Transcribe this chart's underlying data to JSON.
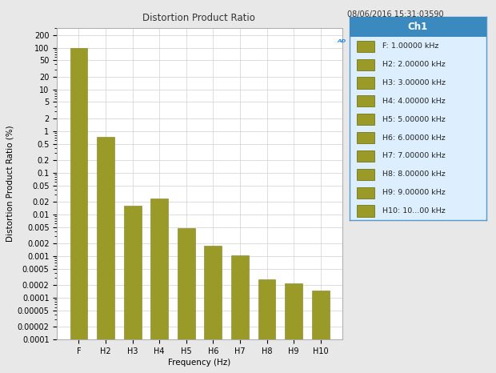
{
  "title": "Distortion Product Ratio",
  "timestamp": "08/06/2016 15:31:03590",
  "xlabel": "Frequency (Hz)",
  "ylabel": "Distortion Product Ratio (%)",
  "categories": [
    "F",
    "H2",
    "H3",
    "H4",
    "H5",
    "H6",
    "H7",
    "H8",
    "H9",
    "H10"
  ],
  "values": [
    100.0,
    0.72,
    0.016,
    0.024,
    0.0047,
    0.0018,
    0.00105,
    0.00028,
    0.00022,
    0.00015
  ],
  "bar_color": "#9a9a28",
  "bar_edge_color": "#808020",
  "background_color": "#e8e8e8",
  "plot_bg_color": "#ffffff",
  "grid_color": "#d0d0d0",
  "ylim_min": 0.0001,
  "ylim_max": 200,
  "yticks": [
    200,
    100,
    50,
    20,
    10,
    5,
    2,
    1,
    0.5,
    0.2,
    0.1,
    0.05,
    0.02,
    0.01,
    0.005,
    0.002,
    0.001,
    0.0005,
    0.0002,
    0.0001,
    5e-05,
    2e-05,
    0.0001
  ],
  "ytick_labels": [
    "200",
    "100",
    "50",
    "20",
    "10",
    "5",
    "2",
    "1",
    "0.5",
    "0.2",
    "0.1",
    "0.05",
    "0.02",
    "0.01",
    "0.005",
    "0.002",
    "0.001",
    "0.0005",
    "0.0002",
    "0.0001",
    "0.00005",
    "0.00002",
    "0.0001"
  ],
  "legend_title": "Ch1",
  "legend_entries": [
    "F: 1.00000 kHz",
    "H2: 2.00000 kHz",
    "H3: 3.00000 kHz",
    "H4: 4.00000 kHz",
    "H5: 5.00000 kHz",
    "H6: 6.00000 kHz",
    "H7: 7.00000 kHz",
    "H8: 8.00000 kHz",
    "H9: 9.00000 kHz",
    "H10: 10...00 kHz"
  ],
  "legend_bg": "#ddeeff",
  "legend_title_bg": "#3a8ac0",
  "legend_border": "#5599cc",
  "title_fontsize": 8.5,
  "axis_label_fontsize": 7.5,
  "tick_fontsize": 7,
  "legend_fontsize": 6.8,
  "timestamp_fontsize": 7,
  "ad_logo_color": "#2288ee"
}
